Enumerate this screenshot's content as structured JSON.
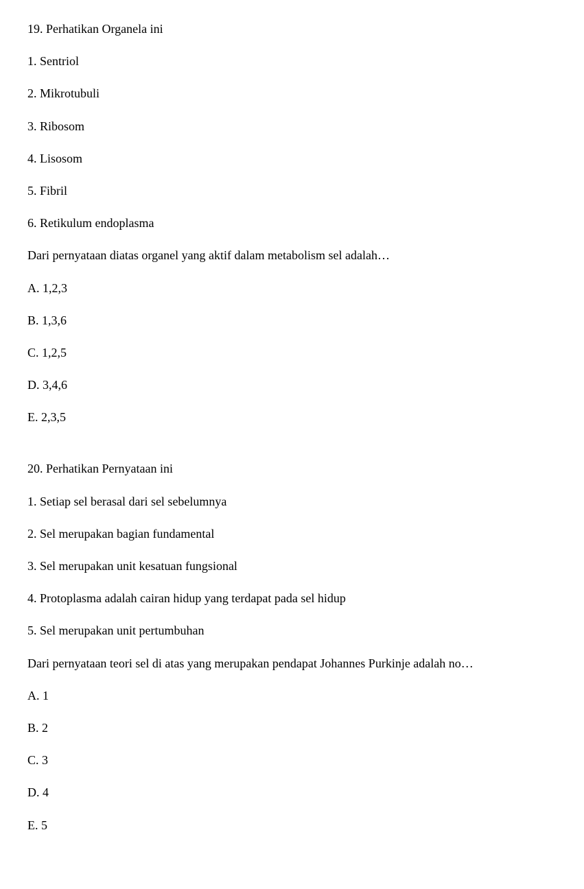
{
  "questions": [
    {
      "number": "19.",
      "title": "Perhatikan Organela ini",
      "items": [
        "1. Sentriol",
        "2. Mikrotubuli",
        "3. Ribosom",
        "4. Lisosom",
        "5. Fibril",
        "6. Retikulum endoplasma"
      ],
      "prompt": "Dari pernyataan diatas organel yang aktif dalam metabolism sel adalah…",
      "options": [
        "A. 1,2,3",
        "B. 1,3,6",
        "C. 1,2,5",
        "D. 3,4,6",
        "E. 2,3,5"
      ]
    },
    {
      "number": "20.",
      "title": "Perhatikan Pernyataan ini",
      "items": [
        "1. Setiap sel berasal dari sel sebelumnya",
        "2. Sel merupakan bagian fundamental",
        "3. Sel merupakan unit kesatuan fungsional",
        "4. Protoplasma adalah cairan hidup yang terdapat pada sel hidup",
        "5. Sel merupakan unit pertumbuhan"
      ],
      "prompt": "Dari pernyataan teori sel di atas yang merupakan pendapat Johannes Purkinje adalah no…",
      "options": [
        "A. 1",
        "B. 2",
        "C. 3",
        "D. 4",
        "E. 5"
      ]
    }
  ]
}
